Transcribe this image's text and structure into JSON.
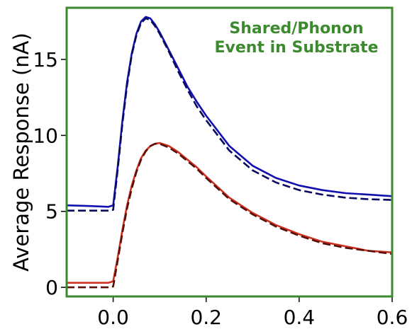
{
  "chart_data": {
    "type": "line",
    "title": "",
    "xlabel": "",
    "ylabel": "Average Response (nA)",
    "xlim": [
      -0.1,
      0.6
    ],
    "ylim": [
      -0.6,
      18.4
    ],
    "x_ticks": [
      "0.0",
      "0.2",
      "0.4",
      "0.6"
    ],
    "y_ticks": [
      "0",
      "5",
      "10",
      "15"
    ],
    "x_tick_values": [
      0.0,
      0.2,
      0.4,
      0.6
    ],
    "y_tick_values": [
      0,
      5,
      10,
      15
    ],
    "grid": false,
    "legend": "none",
    "annotation": "Shared/Phonon\nEvent in Substrate",
    "annotation_color": "#3c8a2e",
    "frame_color": "#3c8a2e",
    "series": [
      {
        "role": "blue-measured",
        "color": "#1010b0",
        "style": "solid",
        "x": [
          -0.1,
          -0.05,
          -0.01,
          0.0,
          0.01,
          0.02,
          0.03,
          0.04,
          0.05,
          0.06,
          0.07,
          0.08,
          0.09,
          0.1,
          0.12,
          0.14,
          0.16,
          0.18,
          0.2,
          0.25,
          0.3,
          0.35,
          0.4,
          0.45,
          0.5,
          0.55,
          0.6
        ],
        "y": [
          5.4,
          5.35,
          5.3,
          5.4,
          8.0,
          11.0,
          13.5,
          15.4,
          16.7,
          17.5,
          17.8,
          17.7,
          17.3,
          16.8,
          15.6,
          14.4,
          13.2,
          12.2,
          11.3,
          9.3,
          8.0,
          7.2,
          6.7,
          6.4,
          6.2,
          6.1,
          6.0
        ]
      },
      {
        "role": "blue-fit",
        "color": "#0a0a60",
        "style": "dashed",
        "x": [
          -0.1,
          -0.05,
          -0.01,
          0.0,
          0.01,
          0.02,
          0.03,
          0.04,
          0.05,
          0.06,
          0.07,
          0.08,
          0.09,
          0.1,
          0.12,
          0.14,
          0.16,
          0.18,
          0.2,
          0.25,
          0.3,
          0.35,
          0.4,
          0.45,
          0.5,
          0.55,
          0.6
        ],
        "y": [
          5.05,
          5.05,
          5.05,
          5.1,
          7.8,
          10.8,
          13.3,
          15.3,
          16.6,
          17.4,
          17.7,
          17.6,
          17.2,
          16.7,
          15.5,
          14.2,
          13.0,
          11.9,
          11.0,
          9.0,
          7.7,
          6.9,
          6.4,
          6.1,
          5.9,
          5.8,
          5.75
        ]
      },
      {
        "role": "red-measured",
        "color": "#d03020",
        "style": "solid",
        "x": [
          -0.1,
          -0.05,
          -0.01,
          0.0,
          0.01,
          0.02,
          0.03,
          0.04,
          0.05,
          0.06,
          0.07,
          0.08,
          0.09,
          0.1,
          0.12,
          0.14,
          0.16,
          0.18,
          0.2,
          0.25,
          0.3,
          0.35,
          0.4,
          0.45,
          0.5,
          0.55,
          0.6
        ],
        "y": [
          0.3,
          0.3,
          0.3,
          0.4,
          2.0,
          3.8,
          5.4,
          6.7,
          7.7,
          8.5,
          9.0,
          9.3,
          9.45,
          9.5,
          9.3,
          8.9,
          8.4,
          7.9,
          7.3,
          5.9,
          4.9,
          4.1,
          3.5,
          3.0,
          2.7,
          2.4,
          2.3
        ]
      },
      {
        "role": "red-fit",
        "color": "#5a1008",
        "style": "dashed",
        "x": [
          -0.1,
          -0.05,
          -0.01,
          0.0,
          0.01,
          0.02,
          0.03,
          0.04,
          0.05,
          0.06,
          0.07,
          0.08,
          0.09,
          0.1,
          0.12,
          0.14,
          0.16,
          0.18,
          0.2,
          0.25,
          0.3,
          0.35,
          0.4,
          0.45,
          0.5,
          0.55,
          0.6
        ],
        "y": [
          0.0,
          0.0,
          0.0,
          0.05,
          1.8,
          3.6,
          5.2,
          6.5,
          7.6,
          8.4,
          8.95,
          9.3,
          9.45,
          9.45,
          9.2,
          8.8,
          8.3,
          7.8,
          7.2,
          5.8,
          4.8,
          4.0,
          3.4,
          2.9,
          2.6,
          2.4,
          2.2
        ]
      }
    ]
  }
}
